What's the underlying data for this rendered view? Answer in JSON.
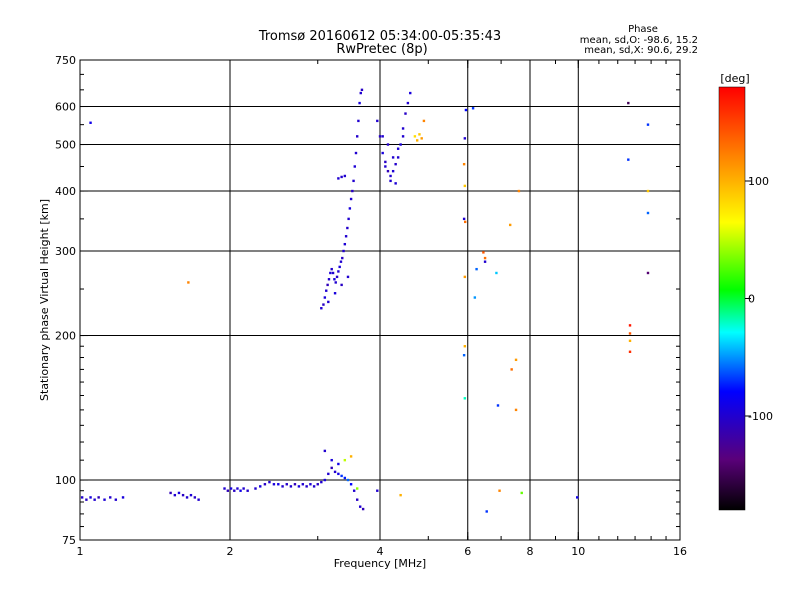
{
  "header": {
    "title": "Tromsø 20160612 05:34:00-05:35:43",
    "subtitle": "RwPretec (8p)",
    "phase_block": {
      "heading": "Phase",
      "line_o": "mean, sd,O: -98.6, 15.2",
      "line_x": "mean, sd,X:  90.6, 29.2"
    }
  },
  "chart_data": {
    "type": "scatter",
    "xlabel": "Frequency [MHz]",
    "ylabel": "Stationary phase Virtual Height [km]",
    "x_scale": "log",
    "y_scale": "log",
    "xlim": [
      1,
      16
    ],
    "ylim": [
      75,
      750
    ],
    "x_ticks": [
      1,
      2,
      4,
      6,
      8,
      10,
      16
    ],
    "x_tick_labels": [
      "1",
      "2",
      "4",
      "6",
      "8",
      "10",
      "16"
    ],
    "y_ticks": [
      75,
      100,
      200,
      300,
      400,
      500,
      600,
      750
    ],
    "y_tick_labels": [
      "75",
      "100",
      "200",
      "300",
      "400",
      "500",
      "600",
      "750"
    ],
    "grid_x": [
      2,
      4,
      6,
      8,
      10
    ],
    "grid_y": [
      100,
      200,
      300,
      400,
      500,
      600
    ],
    "colorbar": {
      "label": "[deg]",
      "range": [
        -180,
        180
      ],
      "ticks": [
        100,
        0,
        -100
      ],
      "tick_labels": [
        "100",
        "0",
        "-100"
      ],
      "colormap": "rainbow (black-purple-blue-cyan-green-yellow-red)"
    },
    "series": [
      {
        "points": [
          [
            1.01,
            92,
            -100
          ],
          [
            1.03,
            91,
            -105
          ],
          [
            1.05,
            92,
            -95
          ],
          [
            1.07,
            91,
            -100
          ],
          [
            1.09,
            92,
            -110
          ],
          [
            1.12,
            91,
            -98
          ],
          [
            1.15,
            92,
            -102
          ],
          [
            1.18,
            91,
            -100
          ],
          [
            1.22,
            92,
            -95
          ],
          [
            1.52,
            94,
            -110
          ],
          [
            1.55,
            93,
            -100
          ],
          [
            1.58,
            94,
            -95
          ],
          [
            1.61,
            93,
            -105
          ],
          [
            1.64,
            92,
            -100
          ],
          [
            1.67,
            93,
            -98
          ],
          [
            1.7,
            92,
            -104
          ],
          [
            1.73,
            91,
            -100
          ],
          [
            1.95,
            96,
            -100
          ],
          [
            1.98,
            95,
            -110
          ],
          [
            2.01,
            96,
            -95
          ],
          [
            2.04,
            95,
            -105
          ],
          [
            2.07,
            96,
            -100
          ],
          [
            2.1,
            95,
            -90
          ],
          [
            2.13,
            96,
            -100
          ],
          [
            2.17,
            95,
            -102
          ],
          [
            2.25,
            96,
            -100
          ],
          [
            2.3,
            97,
            -95
          ],
          [
            2.35,
            98,
            -105
          ],
          [
            2.4,
            99,
            -100
          ],
          [
            2.45,
            98,
            -96
          ],
          [
            2.5,
            98,
            -90
          ],
          [
            2.55,
            97,
            -100
          ],
          [
            2.6,
            98,
            -104
          ],
          [
            2.65,
            97,
            -100
          ],
          [
            2.7,
            98,
            -110
          ],
          [
            2.75,
            97,
            -95
          ],
          [
            2.8,
            98,
            -100
          ],
          [
            2.85,
            97,
            -102
          ],
          [
            2.9,
            98,
            -98
          ],
          [
            2.95,
            97,
            -100
          ],
          [
            3.0,
            98,
            -105
          ],
          [
            3.05,
            99,
            -100
          ],
          [
            3.1,
            100,
            -95
          ],
          [
            3.15,
            103,
            -100
          ],
          [
            3.2,
            106,
            -110
          ],
          [
            3.25,
            104,
            -100
          ],
          [
            3.3,
            103,
            -90
          ],
          [
            3.35,
            102,
            -70
          ],
          [
            3.4,
            101,
            -75
          ],
          [
            3.45,
            100,
            -60
          ],
          [
            3.5,
            98,
            -80
          ],
          [
            3.55,
            95,
            -100
          ],
          [
            3.6,
            91,
            -105
          ],
          [
            3.65,
            88,
            -100
          ],
          [
            3.7,
            87,
            -110
          ],
          [
            3.1,
            115,
            -100
          ],
          [
            3.2,
            110,
            -95
          ],
          [
            3.3,
            108,
            -90
          ],
          [
            3.4,
            110,
            50
          ],
          [
            3.5,
            112,
            100
          ],
          [
            3.6,
            96,
            40
          ],
          [
            3.05,
            228,
            -100
          ],
          [
            3.08,
            232,
            -105
          ],
          [
            3.1,
            240,
            -95
          ],
          [
            3.12,
            248,
            -100
          ],
          [
            3.14,
            255,
            -110
          ],
          [
            3.16,
            262,
            -100
          ],
          [
            3.18,
            270,
            -98
          ],
          [
            3.2,
            275,
            -102
          ],
          [
            3.22,
            270,
            -100
          ],
          [
            3.24,
            262,
            -96
          ],
          [
            3.26,
            258,
            -100
          ],
          [
            3.28,
            265,
            -104
          ],
          [
            3.3,
            272,
            -100
          ],
          [
            3.32,
            278,
            -95
          ],
          [
            3.34,
            285,
            -100
          ],
          [
            3.36,
            290,
            -105
          ],
          [
            3.38,
            300,
            -100
          ],
          [
            3.4,
            310,
            -98
          ],
          [
            3.42,
            322,
            -100
          ],
          [
            3.44,
            335,
            -102
          ],
          [
            3.46,
            350,
            -100
          ],
          [
            3.48,
            368,
            -95
          ],
          [
            3.5,
            385,
            -100
          ],
          [
            3.52,
            400,
            -105
          ],
          [
            3.54,
            420,
            -100
          ],
          [
            3.56,
            450,
            -98
          ],
          [
            3.58,
            480,
            -100
          ],
          [
            3.6,
            520,
            -102
          ],
          [
            3.62,
            560,
            -100
          ],
          [
            3.64,
            610,
            -95
          ],
          [
            3.66,
            640,
            -100
          ],
          [
            3.68,
            650,
            -105
          ],
          [
            3.3,
            425,
            -100
          ],
          [
            3.35,
            428,
            -102
          ],
          [
            3.4,
            430,
            -100
          ],
          [
            3.15,
            235,
            -100
          ],
          [
            3.25,
            245,
            -95
          ],
          [
            3.35,
            255,
            -105
          ],
          [
            3.45,
            265,
            -100
          ],
          [
            3.95,
            560,
            -100
          ],
          [
            4.0,
            520,
            -105
          ],
          [
            4.05,
            480,
            -95
          ],
          [
            4.1,
            450,
            -100
          ],
          [
            4.15,
            440,
            -110
          ],
          [
            4.2,
            430,
            -100
          ],
          [
            4.25,
            440,
            -98
          ],
          [
            4.3,
            455,
            -102
          ],
          [
            4.35,
            470,
            -100
          ],
          [
            4.4,
            500,
            -96
          ],
          [
            4.45,
            540,
            -100
          ],
          [
            4.5,
            580,
            -104
          ],
          [
            4.55,
            610,
            -100
          ],
          [
            4.6,
            640,
            -95
          ],
          [
            4.05,
            520,
            -100
          ],
          [
            4.15,
            500,
            -102
          ],
          [
            4.25,
            470,
            -100
          ],
          [
            4.35,
            490,
            -98
          ],
          [
            4.45,
            520,
            -100
          ],
          [
            4.1,
            460,
            -105
          ],
          [
            4.2,
            420,
            -100
          ],
          [
            4.3,
            415,
            -98
          ],
          [
            4.7,
            520,
            80
          ],
          [
            4.75,
            510,
            100
          ],
          [
            4.8,
            525,
            90
          ],
          [
            4.85,
            515,
            110
          ],
          [
            4.9,
            560,
            120
          ],
          [
            1.05,
            555,
            -90
          ],
          [
            1.65,
            258,
            120
          ],
          [
            3.95,
            95,
            -100
          ],
          [
            4.4,
            93,
            100
          ],
          [
            5.95,
            590,
            -80
          ],
          [
            6.15,
            595,
            -70
          ],
          [
            5.92,
            515,
            -100
          ],
          [
            5.9,
            455,
            120
          ],
          [
            5.92,
            410,
            90
          ],
          [
            5.9,
            350,
            -100
          ],
          [
            5.93,
            345,
            130
          ],
          [
            5.92,
            265,
            110
          ],
          [
            5.92,
            190,
            100
          ],
          [
            5.9,
            182,
            -60
          ],
          [
            5.92,
            148,
            -20
          ],
          [
            6.25,
            275,
            -60
          ],
          [
            6.2,
            240,
            -50
          ],
          [
            6.45,
            298,
            140
          ],
          [
            6.5,
            290,
            130
          ],
          [
            6.5,
            285,
            -100
          ],
          [
            6.85,
            270,
            -40
          ],
          [
            6.9,
            143,
            -70
          ],
          [
            6.95,
            95,
            120
          ],
          [
            7.3,
            340,
            110
          ],
          [
            7.35,
            170,
            130
          ],
          [
            7.5,
            178,
            110
          ],
          [
            7.5,
            140,
            120
          ],
          [
            7.6,
            400,
            120
          ],
          [
            7.7,
            94,
            30
          ],
          [
            6.55,
            86,
            -70
          ],
          [
            9.95,
            92,
            -90
          ],
          [
            12.6,
            610,
            -150
          ],
          [
            12.6,
            465,
            -70
          ],
          [
            12.7,
            210,
            170
          ],
          [
            12.7,
            202,
            140
          ],
          [
            12.7,
            195,
            100
          ],
          [
            12.7,
            185,
            160
          ],
          [
            13.8,
            550,
            -70
          ],
          [
            13.8,
            400,
            90
          ],
          [
            13.8,
            360,
            -60
          ],
          [
            13.8,
            270,
            -140
          ]
        ]
      }
    ]
  }
}
